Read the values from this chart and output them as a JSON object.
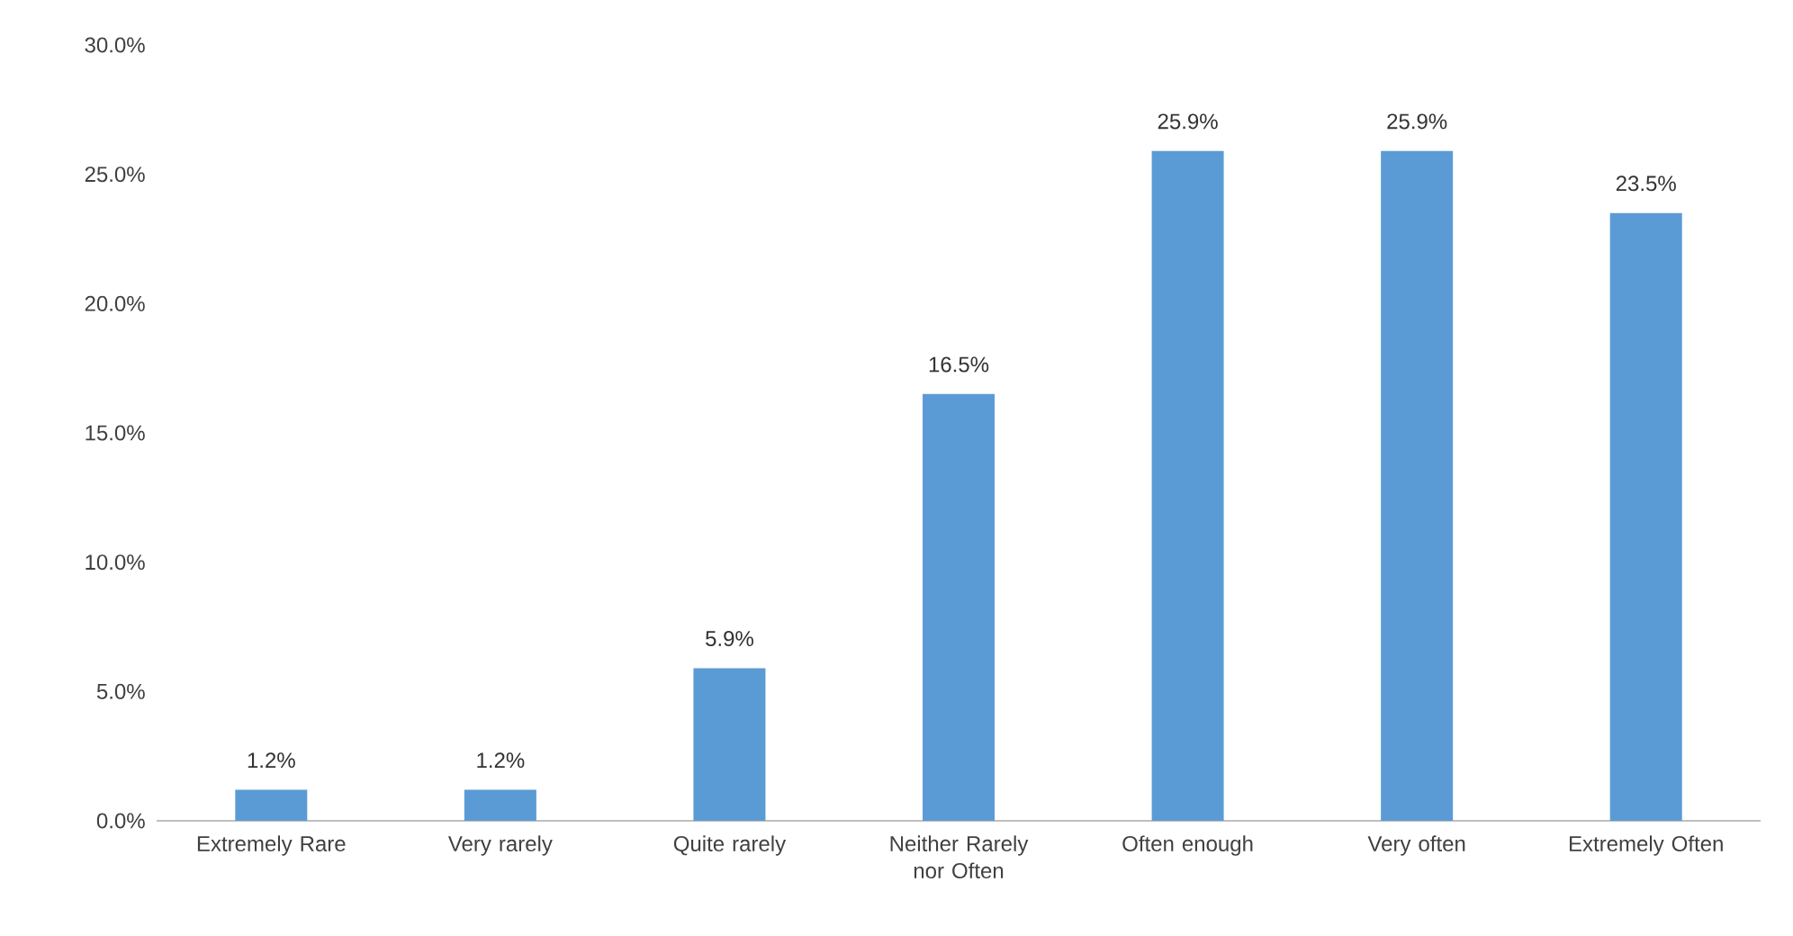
{
  "chart_data": {
    "type": "bar",
    "categories": [
      "Extremely Rare",
      "Very rarely",
      "Quite rarely",
      "Neither Rarely nor Often",
      "Often enough",
      "Very often",
      "Extremely Often"
    ],
    "values": [
      1.2,
      1.2,
      5.9,
      16.5,
      25.9,
      25.9,
      23.5
    ],
    "value_labels": [
      "1.2%",
      "1.2%",
      "5.9%",
      "16.5%",
      "25.9%",
      "25.9%",
      "23.5%"
    ],
    "color": "#5b9bd5",
    "ylim": [
      0,
      30
    ],
    "yticks": [
      {
        "value": 0,
        "label": "0.0%"
      },
      {
        "value": 5,
        "label": "5.0%"
      },
      {
        "value": 10,
        "label": "10.0%"
      },
      {
        "value": 15,
        "label": "15.0%"
      },
      {
        "value": 20,
        "label": "20.0%"
      },
      {
        "value": 25,
        "label": "25.0%"
      },
      {
        "value": 30,
        "label": "30.0%"
      }
    ],
    "grid": false
  }
}
